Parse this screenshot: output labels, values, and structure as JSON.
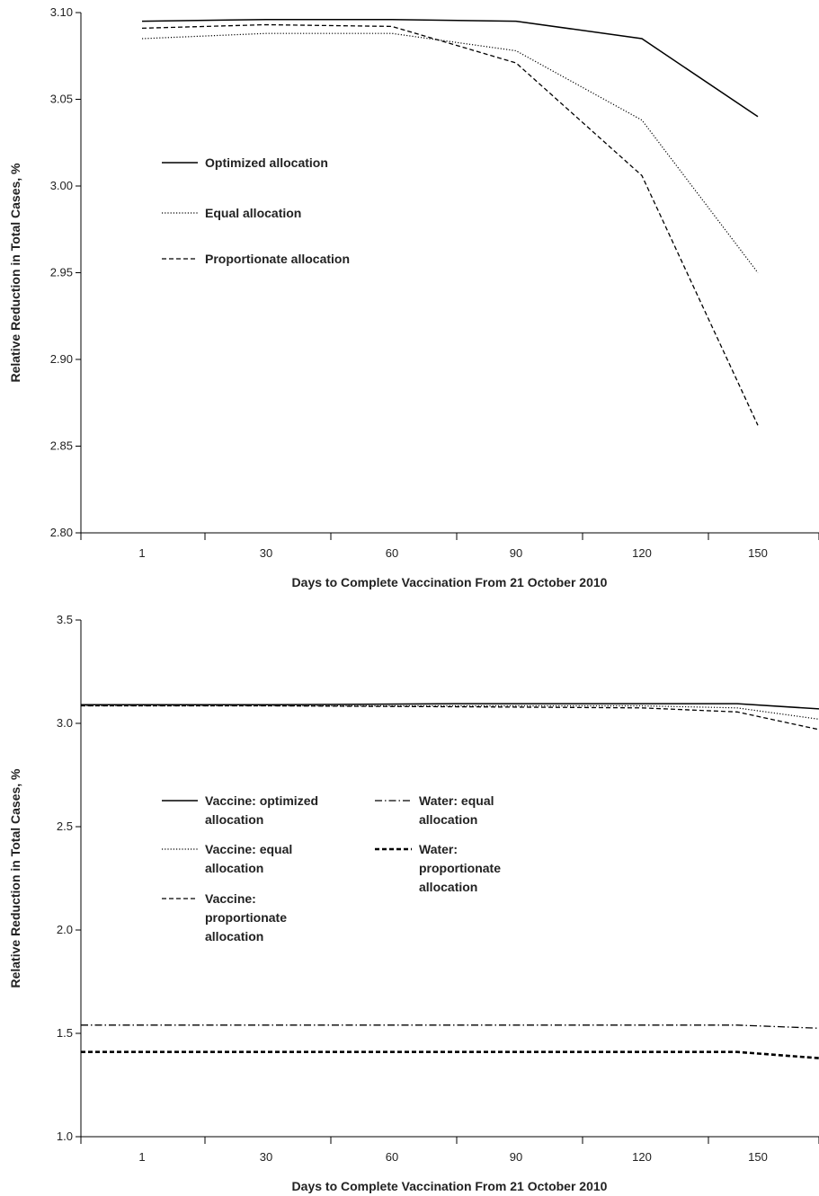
{
  "chart_data": [
    {
      "type": "line",
      "xlabel": "Days to Complete Vaccination From 21 October 2010",
      "ylabel": "Relative Reduction in Total Cases, %",
      "ylim": [
        2.8,
        3.1
      ],
      "y_ticks": [
        "2.80",
        "2.85",
        "2.90",
        "2.95",
        "3.00",
        "3.05",
        "3.10"
      ],
      "x_ticks": [
        "1",
        "30",
        "60",
        "90",
        "120",
        "150"
      ],
      "x": [
        1,
        30,
        60,
        90,
        120,
        150
      ],
      "grid": false,
      "legend_position": "center-left",
      "series": [
        {
          "name": "Optimized allocation",
          "style": "solid",
          "values": [
            3.095,
            3.096,
            3.096,
            3.095,
            3.085,
            3.04
          ]
        },
        {
          "name": "Equal allocation",
          "style": "dotted",
          "values": [
            3.085,
            3.088,
            3.088,
            3.078,
            3.038,
            2.95
          ]
        },
        {
          "name": "Proportionate  allocation",
          "style": "dashed",
          "values": [
            3.091,
            3.093,
            3.092,
            3.071,
            3.006,
            2.862
          ]
        }
      ]
    },
    {
      "type": "line",
      "xlabel": "Days to Complete Vaccination From 21 October 2010",
      "ylabel": "Relative Reduction in Total Cases, %",
      "ylim": [
        1.0,
        3.5
      ],
      "y_ticks": [
        "1.0",
        "1.5",
        "2.0",
        "2.5",
        "3.0",
        "3.5"
      ],
      "x_ticks": [
        "1",
        "30",
        "60",
        "90",
        "120",
        "150"
      ],
      "x": [
        1,
        30,
        60,
        90,
        120,
        150
      ],
      "grid": false,
      "legend_position": "center-left",
      "series": [
        {
          "name": "Vaccine: optimized allocation",
          "style": "solid",
          "values": [
            3.09,
            3.09,
            3.095,
            3.095,
            3.095,
            3.07
          ]
        },
        {
          "name": "Vaccine: equal allocation",
          "style": "dotted",
          "values": [
            3.085,
            3.085,
            3.085,
            3.085,
            3.075,
            3.02
          ]
        },
        {
          "name": "Vaccine: proportionate allocation",
          "style": "dashed",
          "values": [
            3.085,
            3.085,
            3.08,
            3.075,
            3.055,
            2.97
          ]
        },
        {
          "name": "Water: equal allocation",
          "style": "dashdot",
          "values": [
            1.54,
            1.54,
            1.54,
            1.54,
            1.54,
            1.525
          ]
        },
        {
          "name": "Water: proportionate allocation",
          "style": "thick-dashed",
          "values": [
            1.41,
            1.41,
            1.41,
            1.41,
            1.41,
            1.38
          ]
        }
      ],
      "legend_columns": [
        [
          [
            "Vaccine: optimized",
            "allocation"
          ],
          [
            "Vaccine: equal",
            "allocation"
          ],
          [
            "Vaccine:",
            "proportionate",
            "allocation"
          ]
        ],
        [
          [
            "Water: equal",
            "allocation"
          ],
          [
            "Water:",
            "proportionate",
            "allocation"
          ]
        ]
      ]
    }
  ]
}
